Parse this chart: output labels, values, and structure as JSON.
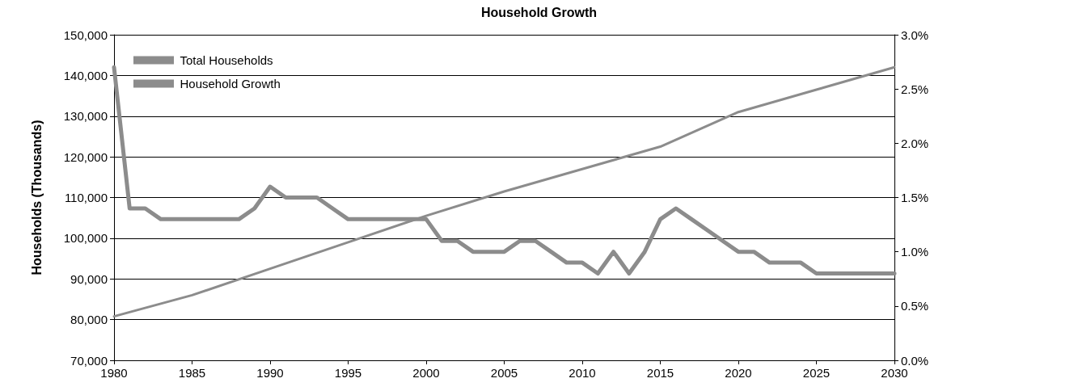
{
  "chart_data": {
    "type": "line",
    "title": "Household Growth",
    "ylabel": "Households (Thousands)",
    "xlim": [
      1980,
      2030
    ],
    "xticks": [
      1980,
      1985,
      1990,
      1995,
      2000,
      2005,
      2010,
      2015,
      2020,
      2025,
      2030
    ],
    "ylim": [
      70000,
      150000
    ],
    "yticks": [
      {
        "value": 70000,
        "label": "70,000"
      },
      {
        "value": 80000,
        "label": "80,000"
      },
      {
        "value": 90000,
        "label": "90,000"
      },
      {
        "value": 100000,
        "label": "100,000"
      },
      {
        "value": 110000,
        "label": "110,000"
      },
      {
        "value": 120000,
        "label": "120,000"
      },
      {
        "value": 130000,
        "label": "130,000"
      },
      {
        "value": 140000,
        "label": "140,000"
      },
      {
        "value": 150000,
        "label": "150,000"
      }
    ],
    "y2lim": [
      0,
      3
    ],
    "y2ticks": [
      {
        "value": 0,
        "label": "0.0%"
      },
      {
        "value": 0.5,
        "label": "0.5%"
      },
      {
        "value": 1,
        "label": "1.0%"
      },
      {
        "value": 1.5,
        "label": "1.5%"
      },
      {
        "value": 2,
        "label": "2.0%"
      },
      {
        "value": 2.5,
        "label": "2.5%"
      },
      {
        "value": 3,
        "label": "3.0%"
      }
    ],
    "grid": "y",
    "legend": "top left",
    "marker": "none",
    "series": [
      {
        "name": "Total Households",
        "color": "#8c8c8c",
        "x": [
          1980,
          1985,
          1990,
          1995,
          2000,
          2005,
          2010,
          2015,
          2020,
          2025,
          2030
        ],
        "values": [
          80800,
          86000,
          92500,
          99000,
          105500,
          111500,
          117000,
          122500,
          131000,
          136500,
          142000
        ]
      },
      {
        "name": "Household Growth",
        "color": "#8c8c8c",
        "axis": "y2",
        "x": [
          1980,
          1981,
          1982,
          1983,
          1984,
          1985,
          1986,
          1987,
          1988,
          1989,
          1990,
          1991,
          1992,
          1993,
          1994,
          1995,
          1996,
          1997,
          1998,
          1999,
          2000,
          2001,
          2002,
          2003,
          2004,
          2005,
          2006,
          2007,
          2008,
          2009,
          2010,
          2011,
          2012,
          2013,
          2014,
          2015,
          2016,
          2017,
          2018,
          2019,
          2020,
          2021,
          2022,
          2023,
          2024,
          2025,
          2026,
          2027,
          2028,
          2029,
          2030
        ],
        "values": [
          2.7,
          1.4,
          1.4,
          1.3,
          1.3,
          1.3,
          1.3,
          1.3,
          1.3,
          1.4,
          1.6,
          1.5,
          1.5,
          1.5,
          1.4,
          1.3,
          1.3,
          1.3,
          1.3,
          1.3,
          1.3,
          1.1,
          1.1,
          1.0,
          1.0,
          1.0,
          1.1,
          1.1,
          1.0,
          0.9,
          0.9,
          0.8,
          1.0,
          0.8,
          1.0,
          1.3,
          1.4,
          1.3,
          1.2,
          1.1,
          1.0,
          1.0,
          0.9,
          0.9,
          0.9,
          0.8,
          0.8,
          0.8,
          0.8,
          0.8,
          0.8
        ]
      }
    ]
  }
}
